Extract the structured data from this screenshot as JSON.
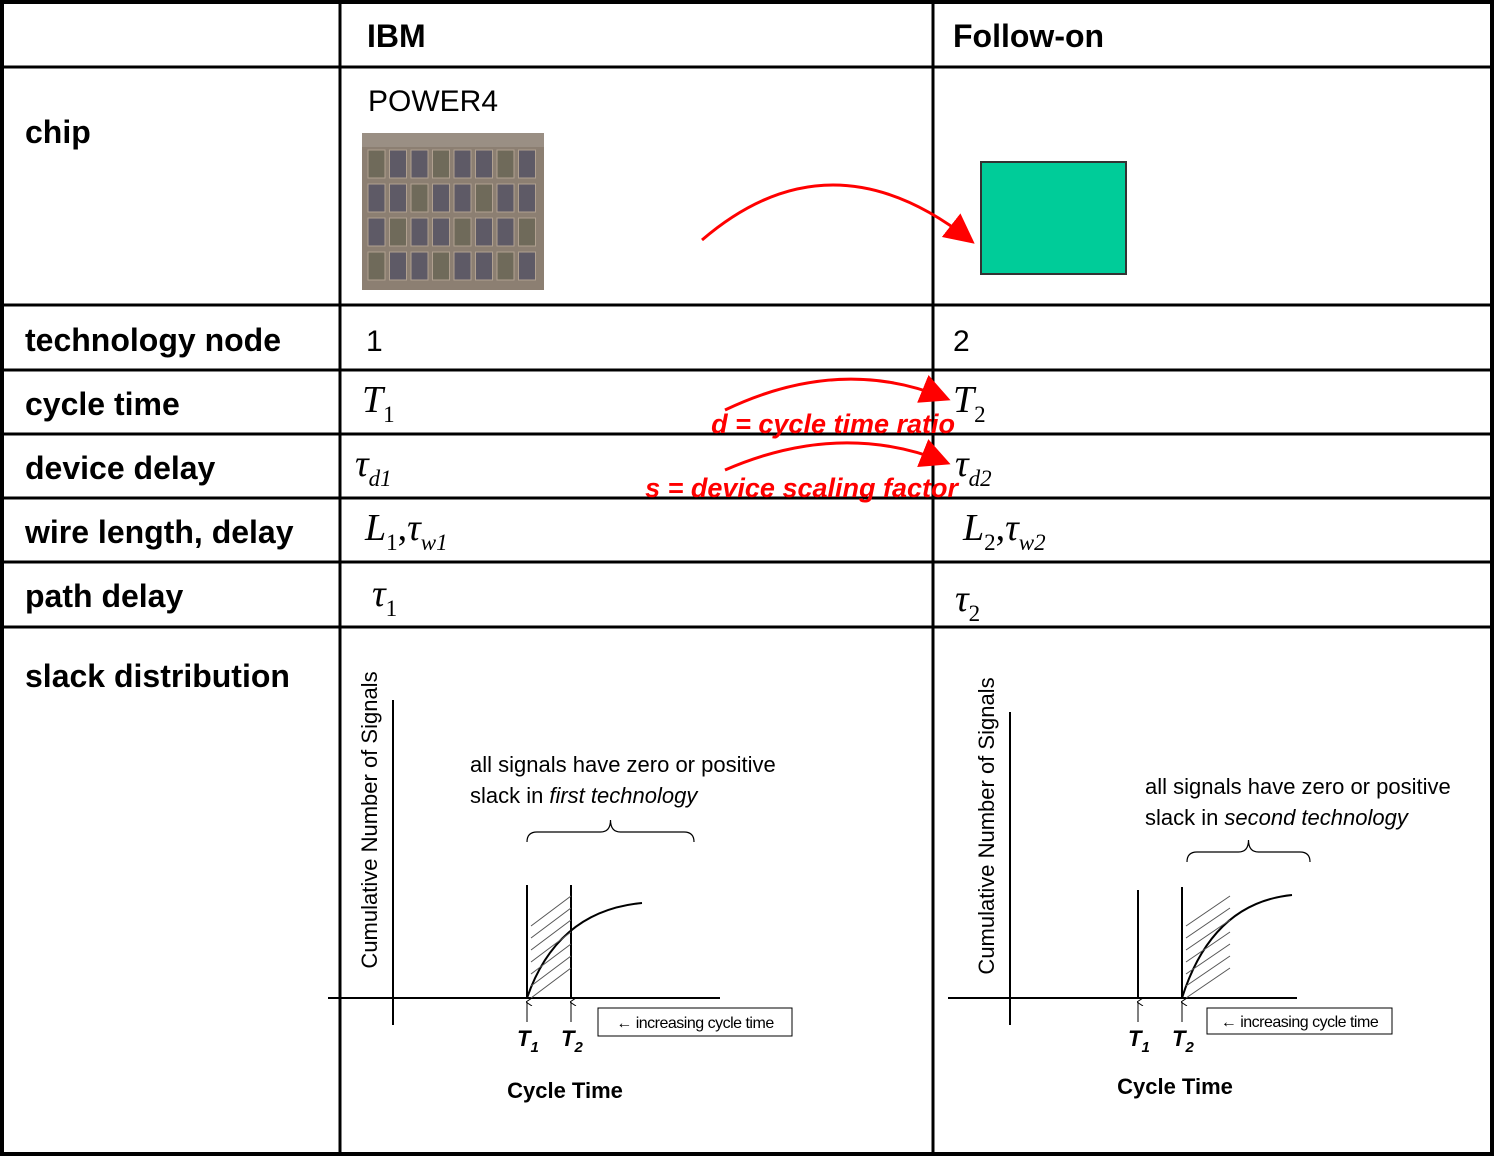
{
  "header": {
    "columns": [
      "IBM",
      "Follow-on"
    ]
  },
  "rows": [
    {
      "label": "chip",
      "ibm": "POWER4"
    },
    {
      "label": "technology node",
      "ibm": "1",
      "follow_on": "2"
    },
    {
      "label": "cycle time",
      "ibm": [
        {
          "base": "T",
          "sub": "1"
        }
      ],
      "follow_on": [
        {
          "base": "T",
          "sub": "2"
        }
      ]
    },
    {
      "label": "device delay",
      "ibm": [
        {
          "base": "τ",
          "sub": "d1"
        }
      ],
      "follow_on": [
        {
          "base": "τ",
          "sub": "d2"
        }
      ]
    },
    {
      "label": "wire length, delay",
      "separator": ",",
      "ibm": [
        {
          "base": "L",
          "sub": "1"
        },
        {
          "base": "τ",
          "sub": "w1"
        }
      ],
      "follow_on": [
        {
          "base": "L",
          "sub": "2"
        },
        {
          "base": "τ",
          "sub": "w2"
        }
      ]
    },
    {
      "label": "path delay",
      "ibm": [
        {
          "base": "τ",
          "sub": "1"
        }
      ],
      "follow_on": [
        {
          "base": "τ",
          "sub": "2"
        }
      ]
    },
    {
      "label": "slack distribution",
      "ibm": {
        "y_label": "Cumulative Number of Signals",
        "x_label": "Cycle Time",
        "note": [
          "all signals have zero or positive",
          "slack in"
        ],
        "note_emphasis": "first technology",
        "markers": [
          {
            "base": "T",
            "sub": "1"
          },
          {
            "base": "T",
            "sub": "2"
          }
        ],
        "legend": "← increasing cycle time"
      },
      "follow_on": {
        "y_label": "Cumulative Number of Signals",
        "x_label": "Cycle Time",
        "note": [
          "all signals have zero or positive",
          "slack in"
        ],
        "note_emphasis": "second technology",
        "markers": [
          {
            "base": "T",
            "sub": "1"
          },
          {
            "base": "T",
            "sub": "2"
          }
        ],
        "legend": "← increasing cycle time"
      }
    }
  ],
  "annotations": [
    "d = cycle time ratio",
    "s = device scaling factor"
  ]
}
